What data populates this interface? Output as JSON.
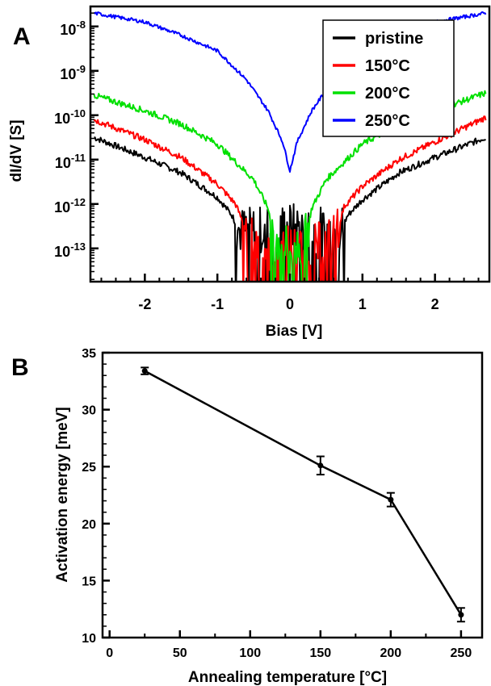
{
  "chart_data": [
    {
      "panel": "A",
      "type": "line",
      "xlabel": "Bias [V]",
      "ylabel": "dI/dV [S]",
      "xlim": [
        -2.75,
        2.75
      ],
      "ylim_log10": [
        -13.75,
        -7.55
      ],
      "yscale": "log",
      "x_ticks": [
        "-2",
        "-1",
        "0",
        "1",
        "2"
      ],
      "y_ticks": [
        {
          "base": "10",
          "exp": "-8"
        },
        {
          "base": "10",
          "exp": "-9"
        },
        {
          "base": "10",
          "exp": "-10"
        },
        {
          "base": "10",
          "exp": "-11"
        },
        {
          "base": "10",
          "exp": "-12"
        },
        {
          "base": "10",
          "exp": "-13"
        }
      ],
      "legend_position": "top-right",
      "series": [
        {
          "name": "pristine",
          "color": "#000000",
          "x": [
            -2.7,
            -2.0,
            -1.5,
            -1.0,
            -0.8,
            -0.7,
            -0.5,
            -0.25,
            0.0,
            0.25,
            0.5,
            0.7,
            0.8,
            1.0,
            1.5,
            2.0,
            2.7
          ],
          "log10_y": [
            -10.5,
            -10.95,
            -11.3,
            -11.85,
            -12.25,
            -12.6,
            -12.6,
            -12.55,
            -12.5,
            -12.55,
            -12.6,
            -12.6,
            -12.25,
            -11.9,
            -11.3,
            -10.95,
            -10.5
          ]
        },
        {
          "name": "150°C",
          "color": "#ff0000",
          "x": [
            -2.7,
            -2.0,
            -1.5,
            -1.0,
            -0.75,
            -0.6,
            -0.5,
            -0.3,
            0.0,
            0.3,
            0.5,
            0.65,
            0.75,
            1.0,
            1.5,
            2.0,
            2.7
          ],
          "log10_y": [
            -10.1,
            -10.55,
            -10.95,
            -11.55,
            -12.0,
            -12.6,
            -12.9,
            -13.0,
            -13.0,
            -13.0,
            -12.9,
            -12.6,
            -12.05,
            -11.6,
            -11.0,
            -10.6,
            -10.05
          ]
        },
        {
          "name": "200°C",
          "color": "#00e000",
          "x": [
            -2.7,
            -2.0,
            -1.5,
            -1.0,
            -0.5,
            -0.3,
            -0.2,
            0.0,
            0.2,
            0.3,
            0.5,
            1.0,
            1.5,
            2.0,
            2.7
          ],
          "log10_y": [
            -9.55,
            -9.9,
            -10.2,
            -10.65,
            -11.45,
            -12.1,
            -12.9,
            -13.0,
            -12.9,
            -12.1,
            -11.45,
            -10.65,
            -10.2,
            -9.9,
            -9.5
          ]
        },
        {
          "name": "250°C",
          "color": "#0000ff",
          "x": [
            -2.7,
            -2.0,
            -1.5,
            -1.0,
            -0.6,
            -0.3,
            -0.1,
            0.0,
            0.1,
            0.3,
            0.6,
            1.0,
            1.5,
            2.0,
            2.7
          ],
          "log10_y": [
            -7.7,
            -7.9,
            -8.2,
            -8.55,
            -9.2,
            -9.9,
            -10.6,
            -11.25,
            -10.6,
            -9.9,
            -9.2,
            -8.55,
            -8.2,
            -7.9,
            -7.7
          ]
        }
      ]
    },
    {
      "panel": "B",
      "type": "line",
      "xlabel": "Annealing temperature [°C]",
      "ylabel": "Activation energy [meV]",
      "xlim": [
        -5,
        265
      ],
      "ylim": [
        10,
        35
      ],
      "x_ticks": [
        "0",
        "50",
        "100",
        "150",
        "200",
        "250"
      ],
      "y_ticks": [
        "10",
        "15",
        "20",
        "25",
        "30",
        "35"
      ],
      "series": [
        {
          "name": "",
          "color": "#000000",
          "x": [
            25,
            150,
            200,
            250
          ],
          "y": [
            33.4,
            25.1,
            22.1,
            12.0
          ],
          "yerr": [
            0.3,
            0.8,
            0.6,
            0.6
          ]
        }
      ]
    }
  ]
}
